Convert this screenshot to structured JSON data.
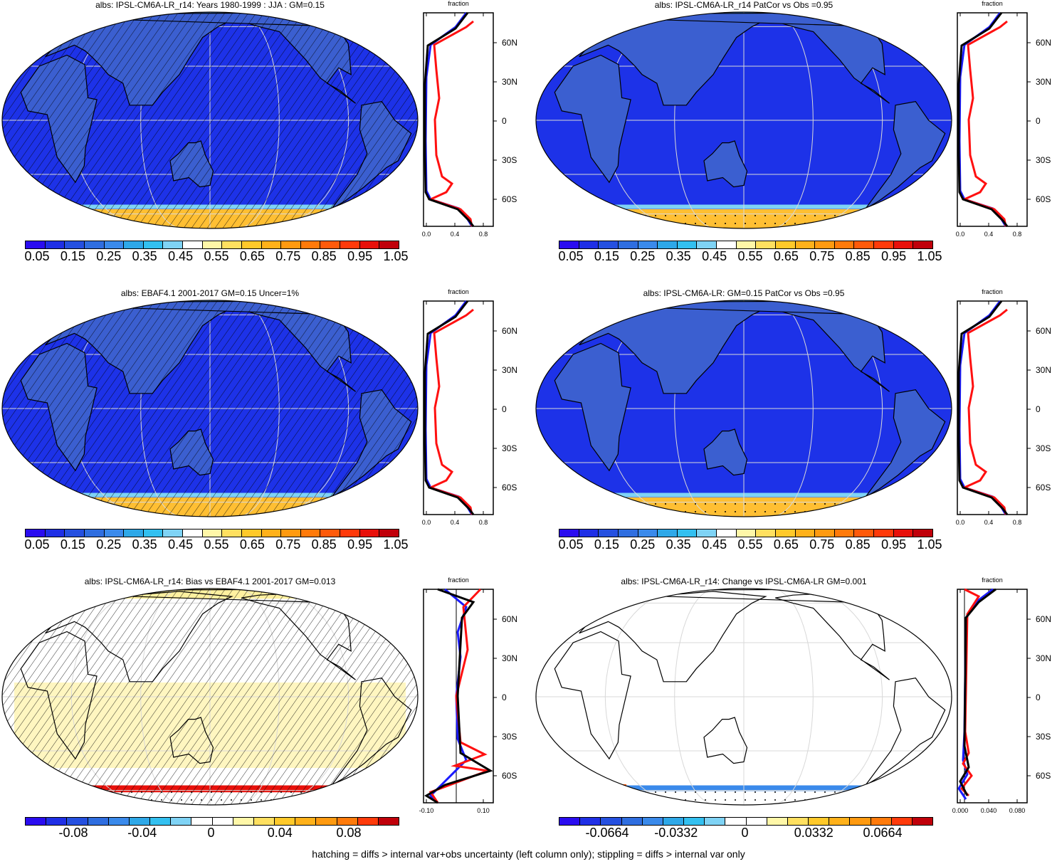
{
  "panels": [
    {
      "title": "albs: IPSL-CM6A-LR_r14: Years 1980-1999 : JJA : GM=0.15",
      "colorbar_kind": "abs",
      "colorbar_labels": [
        "0.05",
        "0.15",
        "0.25",
        "0.35",
        "0.45",
        "0.55",
        "0.65",
        "0.75",
        "0.85",
        "0.95",
        "1.05"
      ],
      "profile_title": "fraction",
      "profile_xticks": [
        "0.0",
        "0.4",
        "0.8"
      ],
      "lat_labels": [
        "60N",
        "30N",
        "0",
        "30S",
        "60S"
      ],
      "hatched": true,
      "stippled": false
    },
    {
      "title": "albs: IPSL-CM6A-LR_r14 PatCor vs Obs =0.95",
      "colorbar_kind": "abs",
      "colorbar_labels": [
        "0.05",
        "0.15",
        "0.25",
        "0.35",
        "0.45",
        "0.55",
        "0.65",
        "0.75",
        "0.85",
        "0.95",
        "1.05"
      ],
      "profile_title": "fraction",
      "profile_xticks": [
        "0.0",
        "0.4",
        "0.8"
      ],
      "lat_labels": [
        "60N",
        "30N",
        "0",
        "30S",
        "60S"
      ],
      "hatched": false,
      "stippled": true
    },
    {
      "title": "albs: EBAF4.1 2001-2017 GM=0.15 Uncer=1%",
      "colorbar_kind": "abs",
      "colorbar_labels": [
        "0.05",
        "0.15",
        "0.25",
        "0.35",
        "0.45",
        "0.55",
        "0.65",
        "0.75",
        "0.85",
        "0.95",
        "1.05"
      ],
      "profile_title": "fraction",
      "profile_xticks": [
        "0.0",
        "0.4",
        "0.8"
      ],
      "lat_labels": [
        "60N",
        "30N",
        "0",
        "30S",
        "60S"
      ],
      "hatched": true,
      "stippled": false
    },
    {
      "title": "albs: IPSL-CM6A-LR: GM=0.15 PatCor vs Obs =0.95",
      "colorbar_kind": "abs",
      "colorbar_labels": [
        "0.05",
        "0.15",
        "0.25",
        "0.35",
        "0.45",
        "0.55",
        "0.65",
        "0.75",
        "0.85",
        "0.95",
        "1.05"
      ],
      "profile_title": "fraction",
      "profile_xticks": [
        "0.0",
        "0.4",
        "0.8"
      ],
      "lat_labels": [
        "60N",
        "30N",
        "0",
        "30S",
        "60S"
      ],
      "hatched": false,
      "stippled": true
    },
    {
      "title": "albs: IPSL-CM6A-LR_r14: Bias vs EBAF4.1 2001-2017 GM=0.013",
      "colorbar_kind": "diff",
      "colorbar_labels": [
        "-0.08",
        "-0.04",
        "0",
        "0.04",
        "0.08"
      ],
      "profile_title": "fraction",
      "profile_xticks": [
        "-0.10",
        "0.10"
      ],
      "lat_labels": [
        "60N",
        "30N",
        "0",
        "30S",
        "60S"
      ],
      "hatched": true,
      "stippled": true
    },
    {
      "title": "albs: IPSL-CM6A-LR_r14: Change vs IPSL-CM6A-LR GM=0.001",
      "colorbar_kind": "change",
      "colorbar_labels": [
        "-0.0664",
        "-0.0332",
        "0",
        "0.0332",
        "0.0664"
      ],
      "profile_title": "fraction",
      "profile_xticks": [
        "0.000",
        "0.040",
        "0.080"
      ],
      "lat_labels": [
        "60N",
        "30N",
        "0",
        "30S",
        "60S"
      ],
      "hatched": false,
      "stippled": true
    }
  ],
  "colors": {
    "abs": [
      "#2a0cf0",
      "#1f2fe6",
      "#2550e0",
      "#2f6ee0",
      "#3a8aeb",
      "#2ea8e8",
      "#33c0f0",
      "#7fd3f5",
      "#ffffff",
      "#fff7a8",
      "#ffe060",
      "#ffc92a",
      "#ffb11a",
      "#ff9a10",
      "#ff7a0a",
      "#ff5a0a",
      "#ff3a0a",
      "#e8100a",
      "#c0000a"
    ],
    "diff": [
      "#2a0cf0",
      "#1f2fe6",
      "#2550e0",
      "#2f6ee0",
      "#3a8aeb",
      "#2ea8e8",
      "#33c0f0",
      "#7fd3f5",
      "#ffffff",
      "#ffffff",
      "#fff7a8",
      "#ffe060",
      "#ffc92a",
      "#ffb11a",
      "#ff9a10",
      "#ff7a0a",
      "#ff3a0a",
      "#c0000a"
    ],
    "land": "#3b5fd0",
    "ocean_blue": "#1d32e8",
    "antarctic": "#ffbf33"
  },
  "footer": "hatching = diffs > internal var+obs uncertainty (left column only); stippling = diffs > internal var only"
}
